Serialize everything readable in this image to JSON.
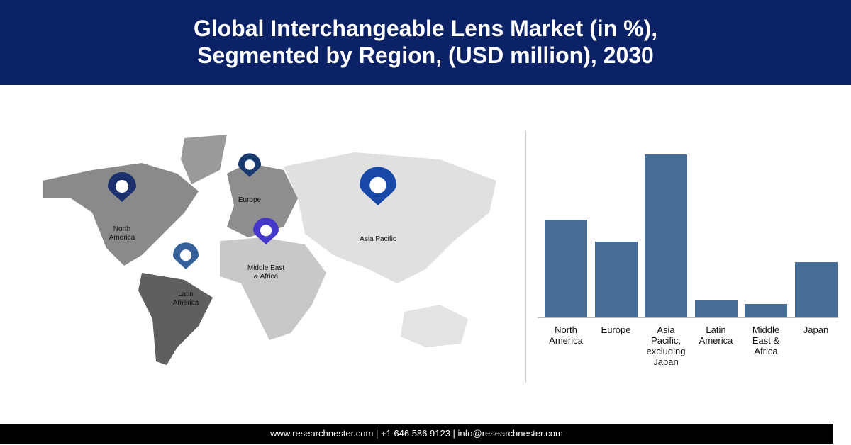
{
  "header": {
    "title": [
      "Global Interchangeable Lens Market (in %),",
      "Segmented by Region, (USD million), 2030"
    ]
  },
  "map": {
    "markers": [
      {
        "label": "North America",
        "color": "#1a2f6b"
      },
      {
        "label": "Europe",
        "color": "#183a6e"
      },
      {
        "label": "Asia Pacific",
        "color": "#1849a8"
      },
      {
        "label": "Middle East & Africa",
        "color": "#4338c9"
      },
      {
        "label": "Latin America",
        "color": "#35609a"
      }
    ]
  },
  "chart_data": {
    "type": "bar",
    "categories": [
      "North America",
      "Europe",
      "Asia Pacific, excluding Japan",
      "Latin America",
      "Middle East & Africa",
      "Japan"
    ],
    "values": [
      23.2,
      18,
      38.6,
      4,
      3.2,
      13.1
    ],
    "color": "#466d98"
  },
  "footer": {
    "text": "www.researchnester.com | +1 646 586 9123 | info@researchnester.com"
  }
}
